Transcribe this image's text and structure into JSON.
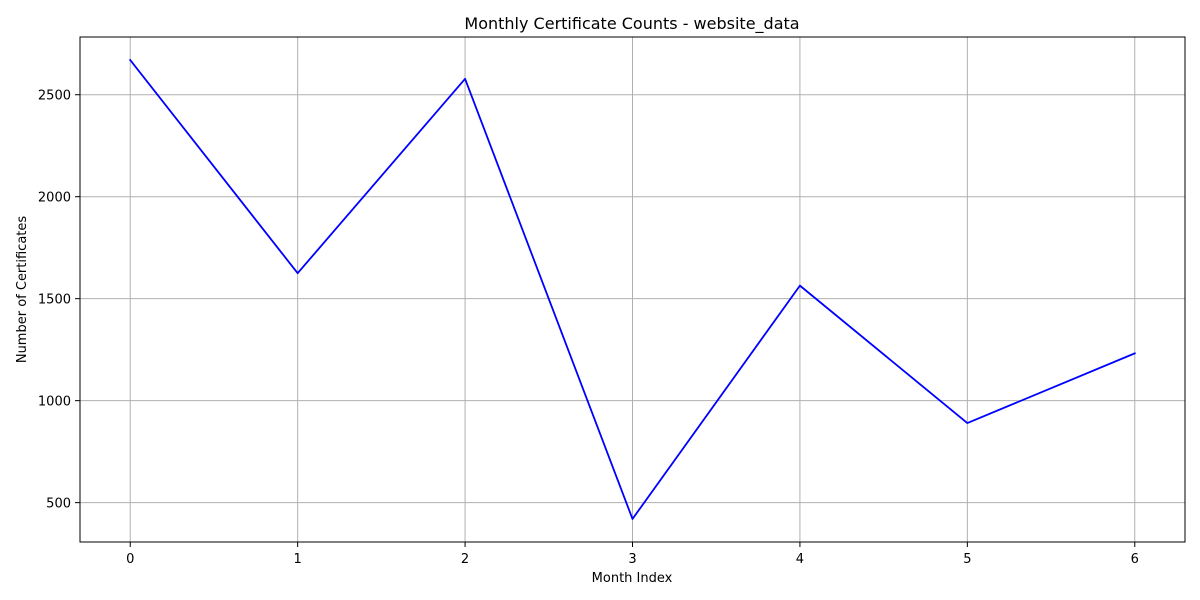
{
  "chart_data": {
    "type": "line",
    "title": "Monthly Certificate Counts - website_data",
    "xlabel": "Month Index",
    "ylabel": "Number of Certificates",
    "x": [
      0,
      1,
      2,
      3,
      4,
      5,
      6
    ],
    "series": [
      {
        "values": [
          2670,
          1625,
          2578,
          420,
          1564,
          890,
          1232
        ],
        "color": "#0000ff"
      }
    ],
    "xticks": [
      0,
      1,
      2,
      3,
      4,
      5,
      6
    ],
    "yticks": [
      500,
      1000,
      1500,
      2000,
      2500
    ],
    "xlim": [
      -0.3,
      6.3
    ],
    "ylim": [
      307,
      2783
    ],
    "grid": true,
    "grid_color": "#b0b0b0"
  }
}
